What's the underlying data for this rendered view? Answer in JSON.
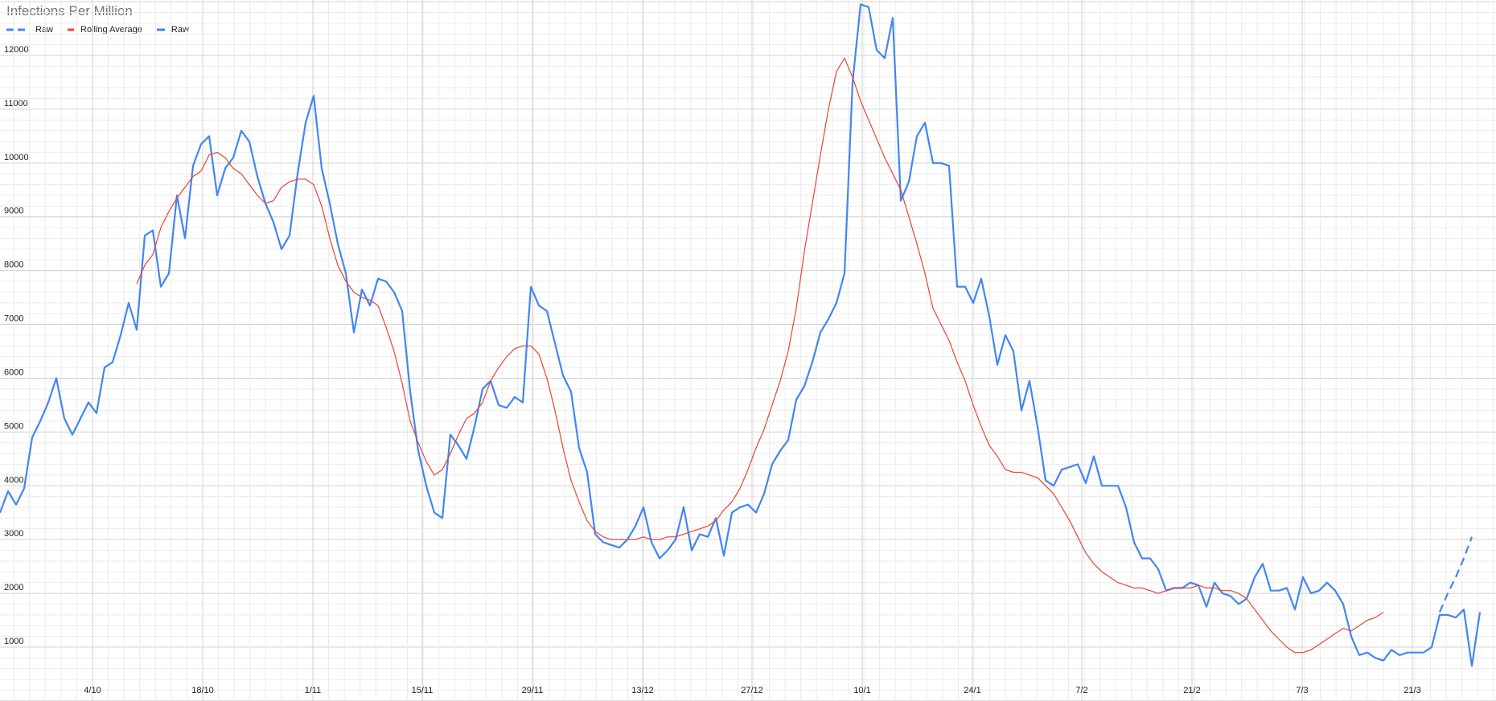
{
  "chart_data": {
    "type": "line",
    "title": "Infections Per Million",
    "legend_position": "top-left",
    "grid": true,
    "ylim": [
      0,
      13000
    ],
    "y_ticks": [
      1000,
      2000,
      3000,
      4000,
      5000,
      6000,
      7000,
      8000,
      9000,
      10000,
      11000,
      12000
    ],
    "x_range_days": [
      0,
      186
    ],
    "x_ticks": [
      {
        "label": "4/10",
        "day": 11.5
      },
      {
        "label": "18/10",
        "day": 25.2
      },
      {
        "label": "1/11",
        "day": 38.9
      },
      {
        "label": "15/11",
        "day": 52.5
      },
      {
        "label": "29/11",
        "day": 66.2
      },
      {
        "label": "13/12",
        "day": 79.9
      },
      {
        "label": "27/12",
        "day": 93.5
      },
      {
        "label": "10/1",
        "day": 107.2
      },
      {
        "label": "24/1",
        "day": 120.9
      },
      {
        "label": "7/2",
        "day": 134.5
      },
      {
        "label": "21/2",
        "day": 148.2
      },
      {
        "label": "7/3",
        "day": 161.9
      },
      {
        "label": "21/3",
        "day": 175.6
      }
    ],
    "colors": {
      "raw": "#4285f4",
      "rolling": "#ea4335",
      "grid_major": "#d0d0d0",
      "grid_minor": "#ebebeb"
    },
    "legend": [
      {
        "label": "Raw",
        "style": "dashed",
        "color": "#4285f4"
      },
      {
        "label": "Rolling Average",
        "style": "solid",
        "color": "#ea4335"
      },
      {
        "label": "Raw",
        "style": "solid",
        "color": "#4285f4"
      }
    ],
    "series": [
      {
        "name": "Raw",
        "style": "solid",
        "start_day": 0,
        "values": [
          3500,
          3900,
          3650,
          3950,
          4900,
          5200,
          5550,
          6000,
          5250,
          4950,
          5250,
          5550,
          5350,
          6200,
          6300,
          6800,
          7400,
          6900,
          8650,
          8750,
          7700,
          7950,
          9400,
          8600,
          9950,
          10350,
          10500,
          9400,
          9900,
          10100,
          10600,
          10400,
          9750,
          9250,
          8900,
          8400,
          8650,
          9800,
          10750,
          11250,
          9900,
          9250,
          8500,
          7950,
          6850,
          7650,
          7350,
          7850,
          7800,
          7600,
          7250,
          5750,
          4650,
          4000,
          3500,
          3400,
          4950,
          4750,
          4500,
          5100,
          5800,
          5950,
          5500,
          5450,
          5650,
          5550,
          7700,
          7350,
          7250,
          6650,
          6050,
          5750,
          4700,
          4250,
          3100,
          2950,
          2900,
          2850,
          3000,
          3250,
          3600,
          2950,
          2650,
          2800,
          3000,
          3600,
          2800,
          3100,
          3050,
          3400,
          2700,
          3500,
          3600,
          3650,
          3500,
          3850,
          4400,
          4650,
          4850,
          5600,
          5850,
          6300,
          6850,
          7100,
          7400,
          7950,
          11500,
          12950,
          12900,
          12100,
          11950,
          12700,
          9300,
          9650,
          10500,
          10750,
          10000,
          10000,
          9950,
          7700,
          7700,
          7400,
          7850,
          7150,
          6250,
          6800,
          6500,
          5400,
          5950,
          5100,
          4100,
          4000,
          4300,
          4350,
          4400,
          4050,
          4550,
          4000,
          4000,
          4000,
          3600,
          2950,
          2650,
          2650,
          2450,
          2050,
          2100,
          2100,
          2200,
          2150,
          1750,
          2200,
          2000,
          1950,
          1800,
          1900,
          2300,
          2550,
          2050,
          2050,
          2100,
          1700,
          2300,
          2000,
          2050,
          2200,
          2050,
          1800,
          1200,
          850,
          900,
          800,
          750,
          950,
          850,
          900,
          900,
          900,
          1000,
          1600,
          1600,
          1550,
          1700,
          650,
          1650
        ]
      },
      {
        "name": "Rolling Average",
        "style": "solid",
        "start_day": 17,
        "values": [
          7750,
          8100,
          8300,
          8800,
          9100,
          9350,
          9550,
          9750,
          9850,
          10150,
          10200,
          10100,
          9900,
          9800,
          9600,
          9400,
          9250,
          9300,
          9550,
          9650,
          9700,
          9700,
          9600,
          9200,
          8600,
          8100,
          7800,
          7600,
          7500,
          7450,
          7350,
          6950,
          6500,
          5900,
          5200,
          4800,
          4450,
          4200,
          4300,
          4600,
          4950,
          5250,
          5350,
          5550,
          5950,
          6200,
          6400,
          6550,
          6600,
          6600,
          6450,
          6000,
          5400,
          4700,
          4100,
          3700,
          3350,
          3150,
          3050,
          3000,
          3000,
          3000,
          3000,
          3050,
          3000,
          3000,
          3050,
          3050,
          3100,
          3150,
          3200,
          3250,
          3350,
          3550,
          3700,
          3950,
          4300,
          4700,
          5050,
          5500,
          5950,
          6500,
          7300,
          8350,
          9250,
          10150,
          11000,
          11700,
          11950,
          11600,
          11150,
          10800,
          10450,
          10100,
          9800,
          9500,
          9000,
          8500,
          7950,
          7300,
          7000,
          6700,
          6300,
          5950,
          5500,
          5100,
          4750,
          4550,
          4300,
          4250,
          4250,
          4200,
          4150,
          4000,
          3850,
          3600,
          3350,
          3050,
          2750,
          2550,
          2400,
          2300,
          2200,
          2150,
          2100,
          2100,
          2050,
          2000,
          2050,
          2100,
          2100,
          2100,
          2150,
          2100,
          2100,
          2050,
          2050,
          2000,
          1900,
          1700,
          1500,
          1300,
          1150,
          1000,
          900,
          900,
          950,
          1050,
          1150,
          1250,
          1350,
          1300,
          1400,
          1500,
          1550,
          1650
        ]
      },
      {
        "name": "Raw",
        "style": "dashed",
        "start_day": 179,
        "values": [
          1650,
          2000,
          2300,
          2650,
          3050
        ]
      }
    ]
  }
}
